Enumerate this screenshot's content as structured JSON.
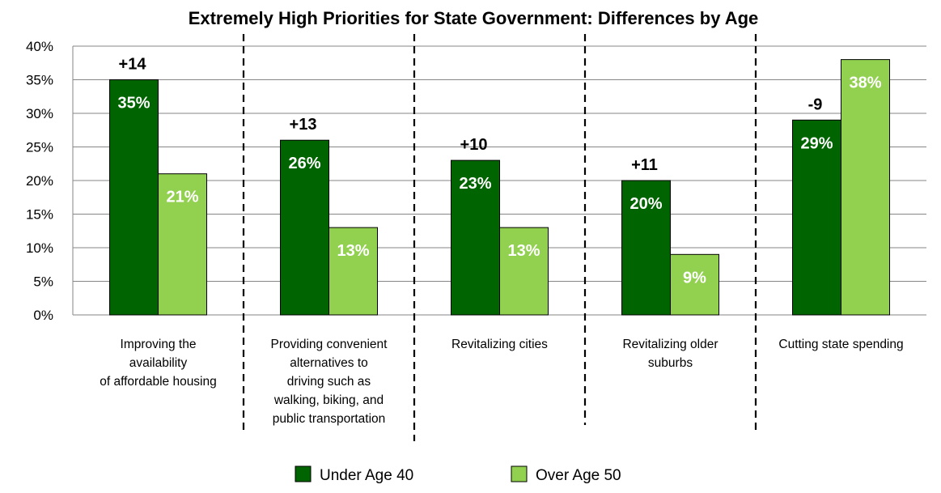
{
  "chart_data": {
    "type": "bar",
    "title": "Extremely High Priorities for State Government: Differences by Age",
    "xlabel": "",
    "ylabel": "",
    "ylim": [
      0,
      40
    ],
    "yticks": [
      "0%",
      "5%",
      "10%",
      "15%",
      "20%",
      "25%",
      "30%",
      "35%",
      "40%"
    ],
    "grid": true,
    "legend_position": "bottom",
    "categories": [
      [
        "Improving the",
        "availability",
        "of affordable housing"
      ],
      [
        "Providing convenient",
        "alternatives to",
        "driving such as",
        "walking, biking, and",
        "public transportation"
      ],
      [
        "Revitalizing cities"
      ],
      [
        "Revitalizing older",
        "suburbs"
      ],
      [
        "Cutting state spending"
      ]
    ],
    "series": [
      {
        "name": "Under Age 40",
        "color": "#006400",
        "values": [
          35,
          26,
          23,
          20,
          29
        ],
        "labels": [
          "35%",
          "26%",
          "23%",
          "20%",
          "29%"
        ]
      },
      {
        "name": "Over Age 50",
        "color": "#92D050",
        "values": [
          21,
          13,
          13,
          9,
          38
        ],
        "labels": [
          "21%",
          "13%",
          "13%",
          "9%",
          "38%"
        ]
      }
    ],
    "differences": [
      "+14",
      "+13",
      "+10",
      "+11",
      "-9"
    ]
  }
}
